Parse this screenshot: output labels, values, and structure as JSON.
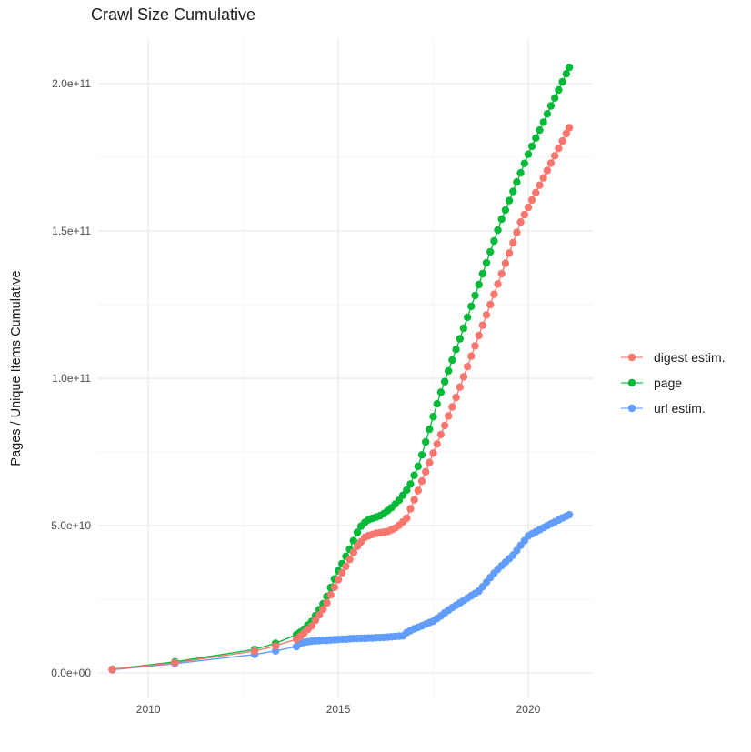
{
  "chart": {
    "title": "Crawl Size Cumulative",
    "ylabel": "Pages / Unique Items Cumulative"
  },
  "chart_data": {
    "type": "line",
    "title": "Crawl Size Cumulative",
    "xlabel": "",
    "ylabel": "Pages / Unique Items Cumulative",
    "values_unit": "billions (1e9); y-axis tick labels shown in scientific notation",
    "grid": true,
    "legend_position": "right-middle",
    "background": "#ffffff",
    "grid_major_color": "#e6e6e6",
    "grid_minor_color": "#f3f3f3",
    "x_range": [
      2008.68,
      2021.7
    ],
    "y_range_e9": [
      -8.6,
      215.4
    ],
    "x_ticks": [
      {
        "v": 2010,
        "label": "2010"
      },
      {
        "v": 2015,
        "label": "2015"
      },
      {
        "v": 2020,
        "label": "2020"
      }
    ],
    "x_minor": [
      2012.5,
      2017.5
    ],
    "y_ticks": [
      {
        "v": 0,
        "label": "0.0e+00"
      },
      {
        "v": 50,
        "label": "5.0e+10"
      },
      {
        "v": 100,
        "label": "1.0e+11"
      },
      {
        "v": 150,
        "label": "1.5e+11"
      },
      {
        "v": 200,
        "label": "2.0e+11"
      }
    ],
    "y_minor": [
      25,
      75,
      125,
      175
    ],
    "x": [
      2009.05,
      2010.7,
      2012.8,
      2013.35,
      2013.9,
      2014.0,
      2014.1,
      2014.2,
      2014.3,
      2014.4,
      2014.5,
      2014.6,
      2014.7,
      2014.8,
      2014.9,
      2015.0,
      2015.1,
      2015.2,
      2015.3,
      2015.4,
      2015.5,
      2015.6,
      2015.7,
      2015.8,
      2015.9,
      2016.0,
      2016.1,
      2016.2,
      2016.3,
      2016.4,
      2016.5,
      2016.6,
      2016.7,
      2016.8,
      2016.9,
      2017.0,
      2017.1,
      2017.2,
      2017.3,
      2017.4,
      2017.5,
      2017.6,
      2017.7,
      2017.8,
      2017.9,
      2018.0,
      2018.1,
      2018.2,
      2018.3,
      2018.4,
      2018.5,
      2018.6,
      2018.7,
      2018.8,
      2018.9,
      2019.0,
      2019.1,
      2019.2,
      2019.3,
      2019.4,
      2019.5,
      2019.6,
      2019.7,
      2019.8,
      2019.9,
      2020.0,
      2020.1,
      2020.2,
      2020.3,
      2020.4,
      2020.5,
      2020.6,
      2020.7,
      2020.8,
      2020.9,
      2021.0,
      2021.08
    ],
    "series": [
      {
        "name": "digest estim.",
        "color": "#F8766D",
        "values": [
          1.2,
          3.5,
          7.4,
          9.2,
          11.5,
          12.5,
          13.6,
          14.8,
          16.0,
          17.9,
          19.7,
          21.6,
          23.8,
          26.5,
          29.1,
          31.7,
          34.0,
          36.2,
          38.5,
          40.9,
          43.0,
          44.5,
          46.0,
          46.6,
          47.0,
          47.4,
          47.6,
          47.8,
          48.0,
          48.6,
          49.2,
          50.1,
          51.3,
          52.5,
          55.7,
          58.8,
          61.9,
          65.1,
          68.3,
          71.4,
          74.6,
          77.7,
          80.9,
          84.0,
          87.2,
          90.3,
          93.5,
          97.0,
          100.5,
          104.0,
          107.5,
          111.0,
          114.5,
          118.0,
          121.5,
          125.0,
          128.5,
          132.0,
          135.5,
          139.0,
          142.5,
          146.0,
          149.5,
          153.0,
          155.5,
          158.0,
          160.5,
          163.0,
          165.5,
          168.0,
          170.5,
          173.0,
          175.5,
          178.0,
          180.5,
          183.0,
          185.0
        ]
      },
      {
        "name": "page",
        "color": "#00BA38",
        "values": [
          1.3,
          3.8,
          8.0,
          10.1,
          13.0,
          13.9,
          14.9,
          16.2,
          17.5,
          19.5,
          21.5,
          23.5,
          26.0,
          29.0,
          31.9,
          34.7,
          37.1,
          39.6,
          42.0,
          44.9,
          47.7,
          49.8,
          51.1,
          52.0,
          52.5,
          52.9,
          53.4,
          54.1,
          55.1,
          56.1,
          57.3,
          58.6,
          60.3,
          62.1,
          64.1,
          67.1,
          70.1,
          74.0,
          78.4,
          82.7,
          87.0,
          91.3,
          95.3,
          98.9,
          102.5,
          106.2,
          109.8,
          113.4,
          117.0,
          120.7,
          124.4,
          128.1,
          131.8,
          135.5,
          139.2,
          142.9,
          146.6,
          150.3,
          154.0,
          157.1,
          160.3,
          163.4,
          166.6,
          169.7,
          172.9,
          176.0,
          178.7,
          181.5,
          184.2,
          186.9,
          189.7,
          192.4,
          195.1,
          197.8,
          200.6,
          203.3,
          205.5
        ]
      },
      {
        "name": "url estim.",
        "color": "#619CFF",
        "values": [
          1.1,
          3.2,
          6.3,
          7.5,
          9.0,
          9.9,
          10.4,
          10.6,
          10.8,
          10.9,
          11.0,
          11.1,
          11.1,
          11.2,
          11.3,
          11.4,
          11.5,
          11.5,
          11.6,
          11.7,
          11.7,
          11.8,
          11.8,
          11.9,
          11.9,
          12.0,
          12.0,
          12.1,
          12.2,
          12.3,
          12.4,
          12.5,
          12.6,
          13.7,
          14.4,
          15.0,
          15.5,
          16.0,
          16.6,
          17.1,
          17.6,
          18.5,
          19.4,
          20.4,
          21.3,
          22.2,
          23.0,
          23.8,
          24.6,
          25.4,
          26.2,
          27.0,
          27.8,
          29.3,
          30.8,
          32.4,
          33.9,
          35.2,
          36.4,
          37.6,
          38.8,
          40.0,
          41.6,
          43.3,
          44.9,
          46.5,
          47.2,
          47.9,
          48.6,
          49.3,
          50.0,
          50.6,
          51.3,
          51.9,
          52.6,
          53.2,
          53.7
        ]
      }
    ]
  }
}
